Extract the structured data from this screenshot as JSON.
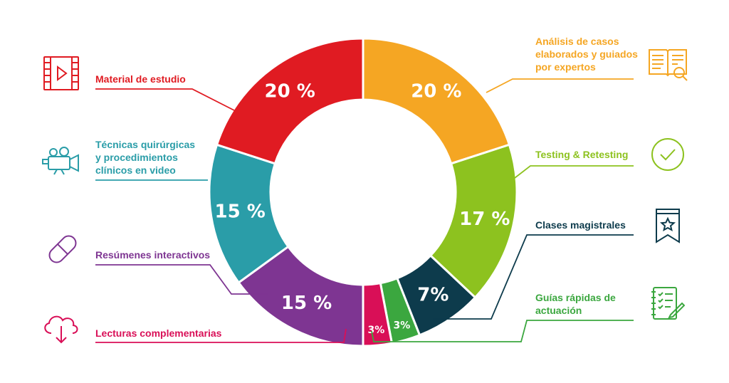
{
  "chart_data": {
    "type": "pie",
    "variant": "donut",
    "start_angle_deg": 0,
    "direction": "clockwise",
    "title": "",
    "slices": [
      {
        "label": "Análisis de casos elaborados y guiados por expertos",
        "value": 20,
        "display": "20 %",
        "color": "#F5A623",
        "icon": "open-book-magnifier-icon"
      },
      {
        "label": "Testing & Retesting",
        "value": 17,
        "display": "17 %",
        "color": "#8DC21F",
        "icon": "checkmark-circle-icon"
      },
      {
        "label": "Clases magistrales",
        "value": 7,
        "display": "7%",
        "color": "#0D3B4C",
        "icon": "bookmark-star-icon"
      },
      {
        "label": "Guías rápidas de actuación",
        "value": 3,
        "display": "3%",
        "color": "#3BA73F",
        "icon": "checklist-pencil-icon"
      },
      {
        "label": "Lecturas complementarias",
        "value": 3,
        "display": "3%",
        "color": "#D90F57",
        "icon": "cloud-download-icon"
      },
      {
        "label": "Resúmenes interactivos",
        "value": 15,
        "display": "15 %",
        "color": "#7E3592",
        "icon": "pill-icon"
      },
      {
        "label": "Técnicas quirúrgicas y procedimientos clínicos en video",
        "value": 15,
        "display": "15 %",
        "color": "#2A9DA8",
        "icon": "video-camera-icon"
      },
      {
        "label": "Material de estudio",
        "value": 20,
        "display": "20 %",
        "color": "#E01B22",
        "icon": "film-play-icon"
      }
    ]
  },
  "labels": {
    "analisis": "Análisis de casos\nelaborados y guiados\npor expertos",
    "testing": "Testing & Retesting",
    "clases": "Clases magistrales",
    "guias": "Guías rápidas de\nactuación",
    "lecturas": "Lecturas complementarias",
    "resumenes": "Resúmenes interactivos",
    "tecnicas": "Técnicas quirúrgicas\ny procedimientos\nclínicos en video",
    "material": "Material de estudio"
  }
}
